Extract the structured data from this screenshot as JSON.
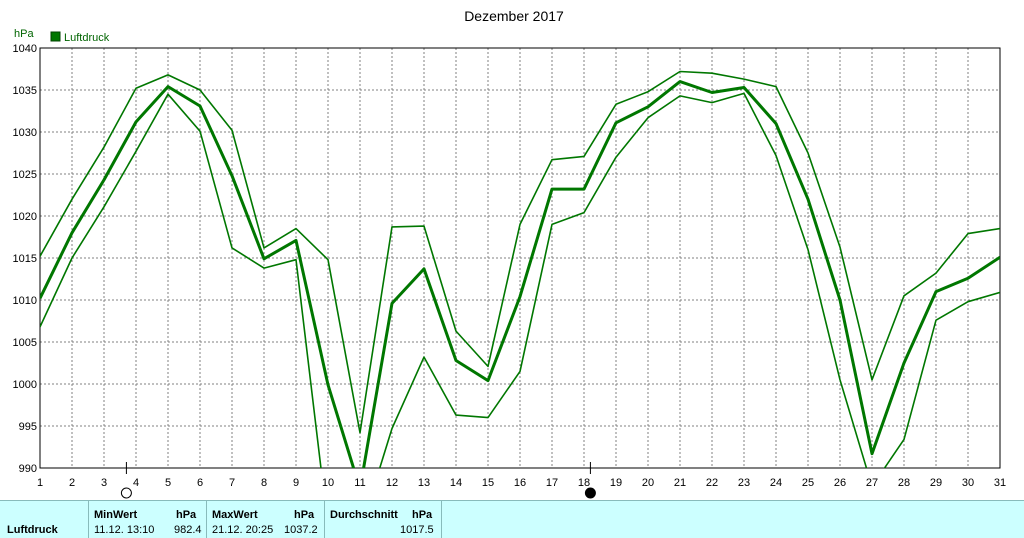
{
  "chart_data": {
    "type": "line",
    "title": "Dezember 2017",
    "ylabel": "hPa",
    "legend": "Luftdruck",
    "legend_position": "top-left",
    "grid": true,
    "ylim": [
      990,
      1040
    ],
    "xlim": [
      1,
      31
    ],
    "yticks": [
      "990",
      "995",
      "1000",
      "1005",
      "1010",
      "1015",
      "1020",
      "1025",
      "1030",
      "1035",
      "1040"
    ],
    "categories": [
      "1",
      "2",
      "3",
      "4",
      "5",
      "6",
      "7",
      "8",
      "9",
      "10",
      "11",
      "12",
      "13",
      "14",
      "15",
      "16",
      "17",
      "18",
      "19",
      "20",
      "21",
      "22",
      "23",
      "24",
      "25",
      "26",
      "27",
      "28",
      "29",
      "30",
      "31"
    ],
    "series": [
      {
        "role": "max",
        "values": [
          1015.2,
          1022.0,
          1028.2,
          1035.2,
          1036.8,
          1035.0,
          1030.2,
          1016.2,
          1018.5,
          1014.8,
          994.2,
          1018.7,
          1018.8,
          1006.3,
          1002.1,
          1019.0,
          1026.7,
          1027.1,
          1033.3,
          1034.8,
          1037.2,
          1037.0,
          1036.3,
          1035.4,
          1027.5,
          1016.3,
          1000.5,
          1010.5,
          1013.2,
          1017.9,
          1018.5
        ]
      },
      {
        "role": "mean",
        "values": [
          1010.2,
          1018.0,
          1024.3,
          1031.2,
          1035.4,
          1033.1,
          1024.8,
          1014.9,
          1017.1,
          999.9,
          987.5,
          1009.6,
          1013.7,
          1002.8,
          1000.4,
          1010.4,
          1023.2,
          1023.2,
          1031.1,
          1033.0,
          1036.0,
          1034.7,
          1035.3,
          1031.0,
          1022.0,
          1010.0,
          991.7,
          1002.5,
          1011.0,
          1012.6,
          1015.1
        ]
      },
      {
        "role": "min",
        "values": [
          1006.8,
          1015.0,
          1021.1,
          1027.7,
          1034.5,
          1030.1,
          1016.2,
          1013.8,
          1014.8,
          983.0,
          982.4,
          994.7,
          1003.2,
          996.3,
          996.0,
          1001.5,
          1019.0,
          1020.4,
          1027.0,
          1031.7,
          1034.3,
          1033.5,
          1034.6,
          1027.2,
          1016.0,
          1000.5,
          987.8,
          993.4,
          1007.6,
          1009.8,
          1010.9
        ]
      }
    ],
    "moon_phases": [
      {
        "day": 3.7,
        "phase": "full-moon"
      },
      {
        "day": 18.2,
        "phase": "new-moon"
      }
    ]
  },
  "stats": {
    "row_label": "Luftdruck",
    "min": {
      "header": "MinWert",
      "unit": "hPa",
      "date": "11.12.",
      "time": "13:10",
      "value": "982.4"
    },
    "max": {
      "header": "MaxWert",
      "unit": "hPa",
      "date": "21.12.",
      "time": "20:25",
      "value": "1037.2"
    },
    "avg": {
      "header": "Durchschnitt",
      "unit": "hPa",
      "value": "1017.5"
    }
  },
  "colors": {
    "line": "#007700",
    "legend": "#006400",
    "grid": "#808080",
    "stats_bg": "#ccffff"
  }
}
